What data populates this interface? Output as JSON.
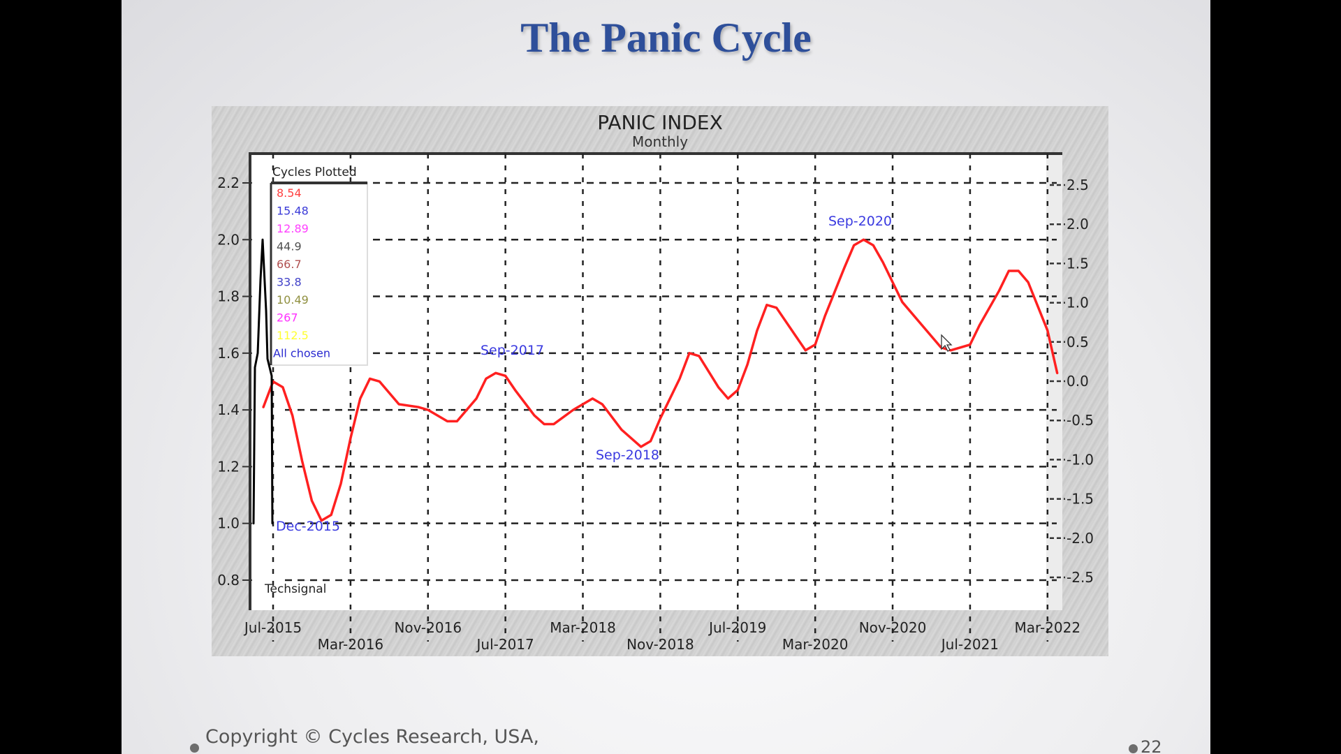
{
  "slide": {
    "title": "The Panic Cycle",
    "footer": "Copyright © Cycles Research, USA,",
    "page_number": "22"
  },
  "colors": {
    "title": "#2e4f9a",
    "series_line": "#ff2020",
    "techsignal": "#000000",
    "annotation": "#3a3ae0",
    "panel_bg": "#d0d0d0",
    "plot_bg": "#ffffff"
  },
  "chart_data": {
    "type": "line",
    "title": "PANIC INDEX",
    "subtitle": "Monthly",
    "xlabel": "",
    "ylabel_left": "",
    "ylabel_right": "",
    "grid": true,
    "x_ticks_top_row": [
      "Jul-2015",
      "Nov-2016",
      "Mar-2018",
      "Jul-2019",
      "Nov-2020",
      "Mar-2022"
    ],
    "x_ticks_bottom_row": [
      "Mar-2016",
      "Jul-2017",
      "Nov-2018",
      "Mar-2020",
      "Jul-2021"
    ],
    "x_ticks": [
      "Jul-2015",
      "Mar-2016",
      "Nov-2016",
      "Jul-2017",
      "Mar-2018",
      "Nov-2018",
      "Jul-2019",
      "Mar-2020",
      "Nov-2020",
      "Jul-2021",
      "Mar-2022"
    ],
    "y_left_ticks": [
      "2.2",
      "2.0",
      "1.8",
      "1.6",
      "1.4",
      "1.2",
      "1.0",
      "0.8"
    ],
    "y_left_range": [
      0.8,
      2.2
    ],
    "y_right_ticks": [
      "2.5",
      "2.0",
      "1.5",
      "1.0",
      "0.5",
      "0.0",
      "-0.5",
      "-1.0",
      "-1.5",
      "-2.0",
      "-2.5"
    ],
    "y_right_range": [
      -2.5,
      2.5
    ],
    "legend": {
      "title": "Cycles Plotted",
      "items": [
        {
          "label": "8.54",
          "color": "#ff4040"
        },
        {
          "label": "15.48",
          "color": "#3b3bd8"
        },
        {
          "label": "12.89",
          "color": "#ff40ff"
        },
        {
          "label": "44.9",
          "color": "#505050"
        },
        {
          "label": "66.7",
          "color": "#b05050"
        },
        {
          "label": "33.8",
          "color": "#4040c8"
        },
        {
          "label": "10.49",
          "color": "#909040"
        },
        {
          "label": "267",
          "color": "#ff30ff"
        },
        {
          "label": "112.5",
          "color": "#ffff30"
        },
        {
          "label": "All chosen",
          "color": "#2a2ad0"
        }
      ]
    },
    "annotations": [
      {
        "label": "Dec-2015",
        "x": "Dec-2015",
        "y": 1.01
      },
      {
        "label": "Sep-2017",
        "x": "Sep-2017",
        "y": 1.6
      },
      {
        "label": "Sep-2018",
        "x": "Sep-2018",
        "y": 1.25
      },
      {
        "label": "Sep-2020",
        "x": "Sep-2020",
        "y": 2.06
      }
    ],
    "footnote": "Techsignal",
    "series": [
      {
        "name": "Panic Index (All chosen cycles)",
        "color": "#ff2020",
        "axis": "left",
        "points": [
          {
            "x": "Jun-2015",
            "y": 1.41
          },
          {
            "x": "Jul-2015",
            "y": 1.5
          },
          {
            "x": "Aug-2015",
            "y": 1.48
          },
          {
            "x": "Sep-2015",
            "y": 1.38
          },
          {
            "x": "Oct-2015",
            "y": 1.22
          },
          {
            "x": "Nov-2015",
            "y": 1.08
          },
          {
            "x": "Dec-2015",
            "y": 1.01
          },
          {
            "x": "Jan-2016",
            "y": 1.03
          },
          {
            "x": "Feb-2016",
            "y": 1.14
          },
          {
            "x": "Mar-2016",
            "y": 1.3
          },
          {
            "x": "Apr-2016",
            "y": 1.44
          },
          {
            "x": "May-2016",
            "y": 1.51
          },
          {
            "x": "Jun-2016",
            "y": 1.5
          },
          {
            "x": "Jul-2016",
            "y": 1.46
          },
          {
            "x": "Aug-2016",
            "y": 1.42
          },
          {
            "x": "Oct-2016",
            "y": 1.41
          },
          {
            "x": "Nov-2016",
            "y": 1.4
          },
          {
            "x": "Jan-2017",
            "y": 1.36
          },
          {
            "x": "Feb-2017",
            "y": 1.36
          },
          {
            "x": "Apr-2017",
            "y": 1.44
          },
          {
            "x": "May-2017",
            "y": 1.51
          },
          {
            "x": "Jun-2017",
            "y": 1.53
          },
          {
            "x": "Jul-2017",
            "y": 1.52
          },
          {
            "x": "Aug-2017",
            "y": 1.47
          },
          {
            "x": "Oct-2017",
            "y": 1.38
          },
          {
            "x": "Nov-2017",
            "y": 1.35
          },
          {
            "x": "Dec-2017",
            "y": 1.35
          },
          {
            "x": "Feb-2018",
            "y": 1.4
          },
          {
            "x": "Apr-2018",
            "y": 1.44
          },
          {
            "x": "May-2018",
            "y": 1.42
          },
          {
            "x": "Jul-2018",
            "y": 1.33
          },
          {
            "x": "Sep-2018",
            "y": 1.27
          },
          {
            "x": "Oct-2018",
            "y": 1.29
          },
          {
            "x": "Nov-2018",
            "y": 1.37
          },
          {
            "x": "Jan-2019",
            "y": 1.51
          },
          {
            "x": "Feb-2019",
            "y": 1.6
          },
          {
            "x": "Mar-2019",
            "y": 1.59
          },
          {
            "x": "May-2019",
            "y": 1.48
          },
          {
            "x": "Jun-2019",
            "y": 1.44
          },
          {
            "x": "Jul-2019",
            "y": 1.47
          },
          {
            "x": "Aug-2019",
            "y": 1.56
          },
          {
            "x": "Sep-2019",
            "y": 1.68
          },
          {
            "x": "Oct-2019",
            "y": 1.77
          },
          {
            "x": "Nov-2019",
            "y": 1.76
          },
          {
            "x": "Jan-2020",
            "y": 1.66
          },
          {
            "x": "Feb-2020",
            "y": 1.61
          },
          {
            "x": "Mar-2020",
            "y": 1.63
          },
          {
            "x": "Apr-2020",
            "y": 1.73
          },
          {
            "x": "Jun-2020",
            "y": 1.9
          },
          {
            "x": "Jul-2020",
            "y": 1.98
          },
          {
            "x": "Aug-2020",
            "y": 2.0
          },
          {
            "x": "Sep-2020",
            "y": 1.98
          },
          {
            "x": "Oct-2020",
            "y": 1.92
          },
          {
            "x": "Nov-2020",
            "y": 1.85
          },
          {
            "x": "Dec-2020",
            "y": 1.78
          },
          {
            "x": "Feb-2021",
            "y": 1.7
          },
          {
            "x": "Apr-2021",
            "y": 1.62
          },
          {
            "x": "May-2021",
            "y": 1.61
          },
          {
            "x": "Jul-2021",
            "y": 1.63
          },
          {
            "x": "Aug-2021",
            "y": 1.7
          },
          {
            "x": "Oct-2021",
            "y": 1.82
          },
          {
            "x": "Nov-2021",
            "y": 1.89
          },
          {
            "x": "Dec-2021",
            "y": 1.89
          },
          {
            "x": "Jan-2022",
            "y": 1.85
          },
          {
            "x": "Mar-2022",
            "y": 1.68
          },
          {
            "x": "Apr-2022",
            "y": 1.53
          }
        ]
      },
      {
        "name": "Techsignal",
        "color": "#000000",
        "axis": "left",
        "points": [
          {
            "x": "Jun-2015",
            "y": 1.0
          },
          {
            "x": "Jun-2015",
            "y": 1.55
          },
          {
            "x": "Jul-2015",
            "y": 2.0
          },
          {
            "x": "Jul-2015",
            "y": 1.6
          },
          {
            "x": "Jul-2015",
            "y": 1.0
          }
        ]
      }
    ]
  }
}
